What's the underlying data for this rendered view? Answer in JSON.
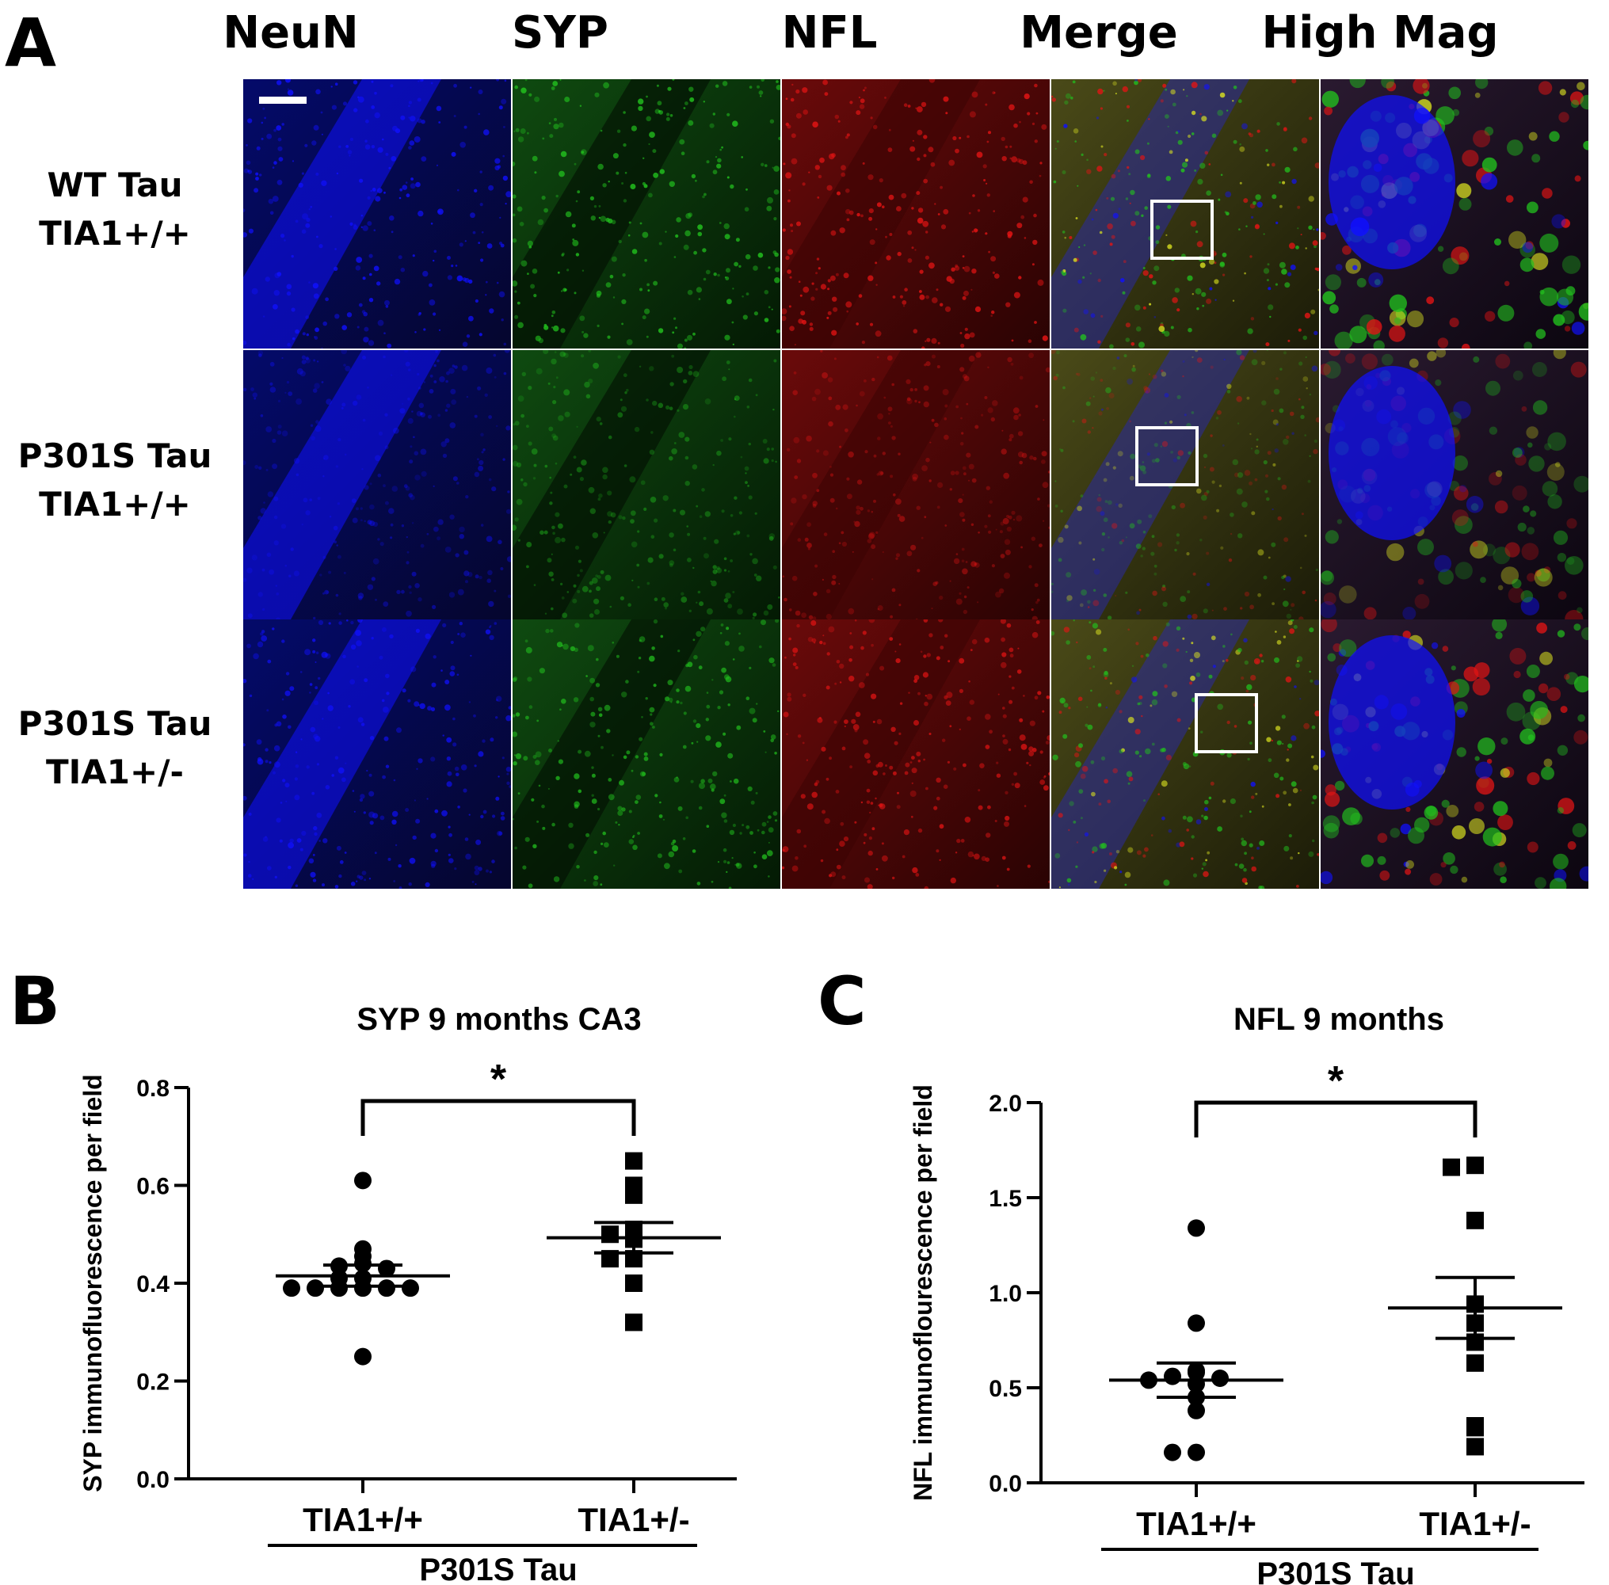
{
  "panels": {
    "a": "A",
    "b": "B",
    "c": "C"
  },
  "microscopy": {
    "columns": [
      "NeuN",
      "SYP",
      "NFL",
      "Merge",
      "High Mag"
    ],
    "rows": [
      {
        "line1": "WT Tau",
        "line2": "TIA1+/+"
      },
      {
        "line1": "P301S Tau",
        "line2": "TIA1+/+"
      },
      {
        "line1": "P301S Tau",
        "line2": "TIA1+/-"
      }
    ],
    "channel_colors": {
      "neun": "#1010ff",
      "syp": "#22c01e",
      "nfl": "#e31414"
    }
  },
  "chart_data": [
    {
      "type": "scatter",
      "title": "SYP 9 months CA3",
      "ylabel": "SYP immunofluorescence per field",
      "categories": [
        "TIA1+/+",
        "TIA1+/-"
      ],
      "group_label": "P301S Tau",
      "ylim": [
        0,
        0.8
      ],
      "yticks": [
        "0.0",
        "0.2",
        "0.4",
        "0.6",
        "0.8"
      ],
      "series": [
        {
          "category": "TIA1+/+",
          "marker": "circle",
          "values": [
            0.61,
            0.47,
            0.455,
            0.44,
            0.435,
            0.43,
            0.41,
            0.41,
            0.39,
            0.39,
            0.39,
            0.39,
            0.39,
            0.39,
            0.25
          ],
          "mean": 0.415,
          "sem_upper": 0.437,
          "sem_lower": 0.394
        },
        {
          "category": "TIA1+/-",
          "marker": "square",
          "values": [
            0.65,
            0.6,
            0.58,
            0.51,
            0.5,
            0.49,
            0.45,
            0.45,
            0.4,
            0.32
          ],
          "mean": 0.493,
          "sem_upper": 0.524,
          "sem_lower": 0.462
        }
      ],
      "significance": "*"
    },
    {
      "type": "scatter",
      "title": "NFL 9 months",
      "ylabel": "NFL immunoflourescence per field",
      "categories": [
        "TIA1+/+",
        "TIA1+/-"
      ],
      "group_label": "P301S Tau",
      "ylim": [
        0,
        2.0
      ],
      "yticks": [
        "0.0",
        "0.5",
        "1.0",
        "1.5",
        "2.0"
      ],
      "series": [
        {
          "category": "TIA1+/+",
          "marker": "circle",
          "values": [
            1.34,
            0.84,
            0.59,
            0.58,
            0.56,
            0.55,
            0.54,
            0.52,
            0.45,
            0.38,
            0.16,
            0.16
          ],
          "mean": 0.54,
          "sem_upper": 0.63,
          "sem_lower": 0.45
        },
        {
          "category": "TIA1+/-",
          "marker": "square",
          "values": [
            1.67,
            1.66,
            1.38,
            0.94,
            0.84,
            0.74,
            0.63,
            0.3,
            0.29,
            0.19
          ],
          "mean": 0.92,
          "sem_upper": 1.08,
          "sem_lower": 0.76
        }
      ],
      "significance": "*"
    }
  ]
}
